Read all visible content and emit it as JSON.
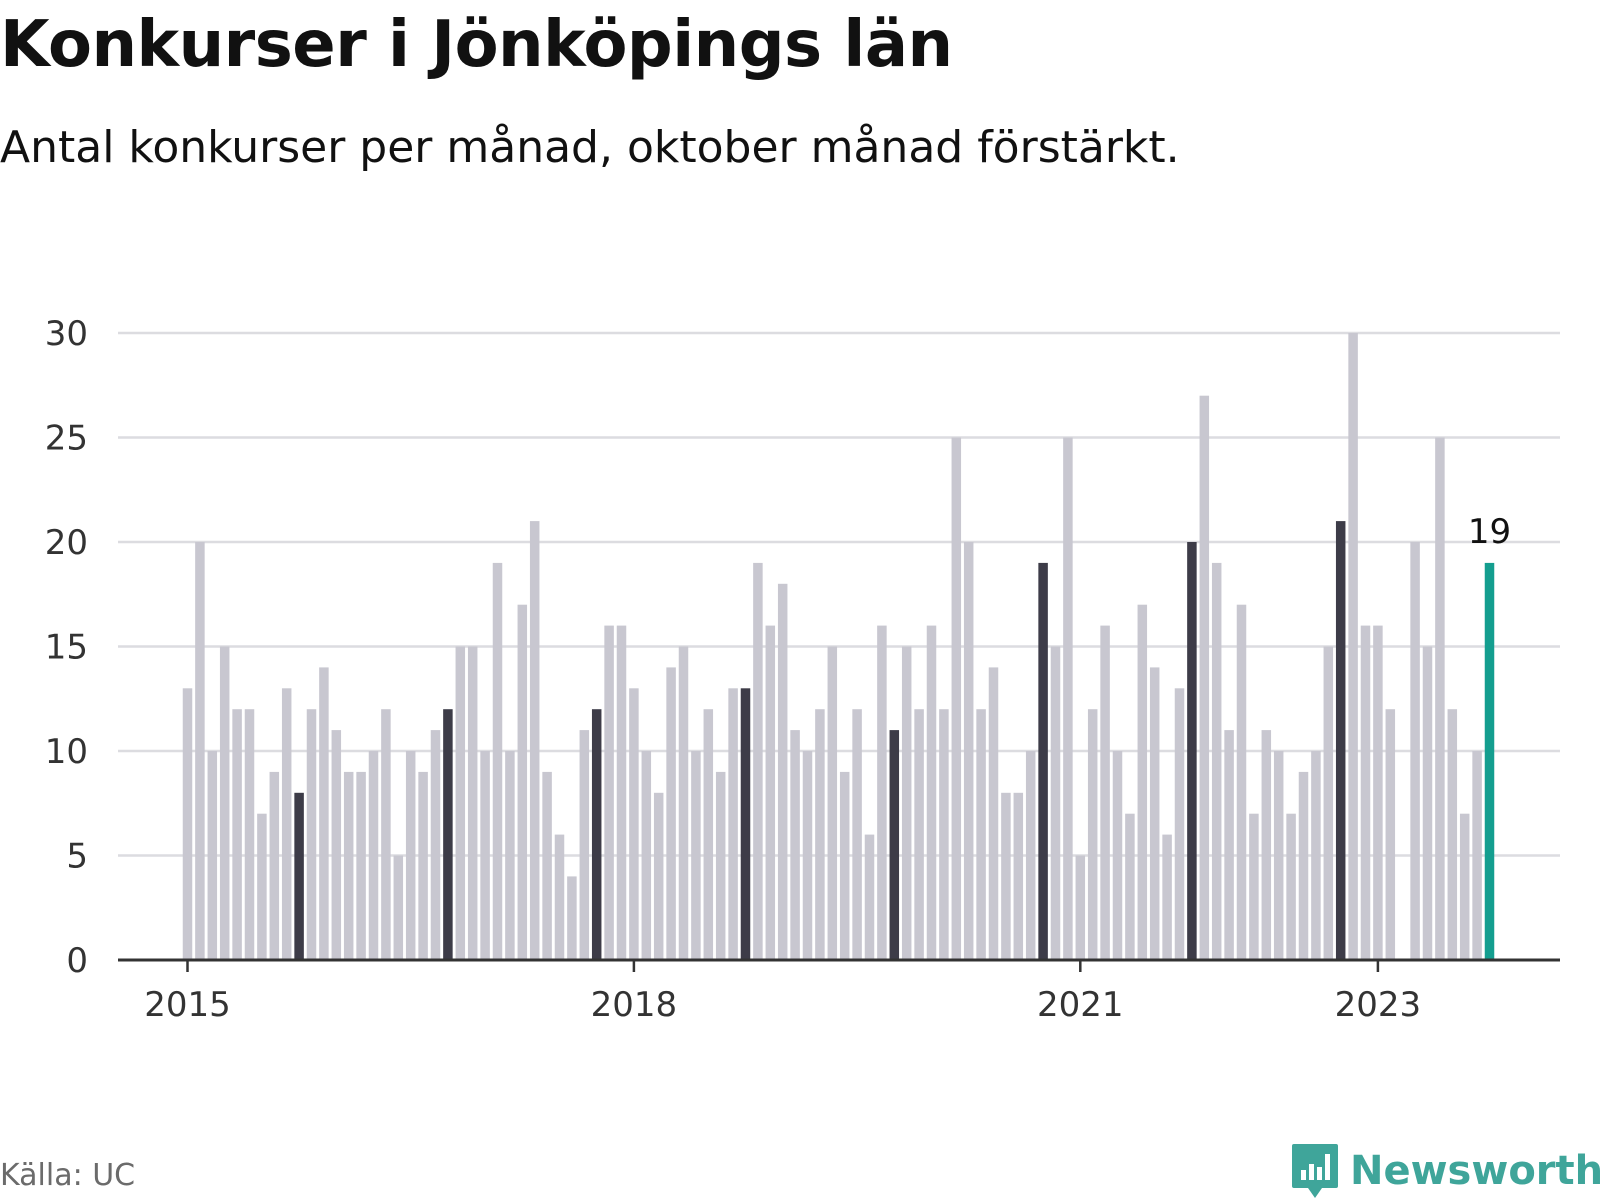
{
  "title": "Konkurser i Jönköpings län",
  "subtitle": "Antal konkurser per månad, oktober månad förstärkt.",
  "source": "Källa: UC",
  "brand": {
    "name": "Newsworthy",
    "icon": "bar-chart-speech-bubble-icon"
  },
  "colors": {
    "bar": "#c8c7d0",
    "highlight_october": "#3d3c48",
    "latest": "#149e8f",
    "grid": "#dcdce0",
    "axis": "#333333",
    "brand": "#3fa59a"
  },
  "chart_data": {
    "type": "bar",
    "ylim": [
      0,
      30
    ],
    "yticks": [
      0,
      5,
      10,
      15,
      20,
      25,
      30
    ],
    "xtick_labels": [
      {
        "label": "2015",
        "index": 0
      },
      {
        "label": "2018",
        "index": 36
      },
      {
        "label": "2021",
        "index": 72
      },
      {
        "label": "2023",
        "index": 96
      }
    ],
    "start": "2015-01",
    "highlighted_month": "oktober",
    "values": [
      13,
      20,
      10,
      15,
      12,
      12,
      7,
      9,
      13,
      8,
      12,
      14,
      11,
      9,
      9,
      10,
      12,
      5,
      10,
      9,
      11,
      12,
      15,
      15,
      10,
      19,
      10,
      17,
      21,
      9,
      6,
      4,
      11,
      12,
      16,
      16,
      13,
      10,
      8,
      14,
      15,
      10,
      12,
      9,
      13,
      13,
      19,
      16,
      18,
      11,
      10,
      12,
      15,
      9,
      12,
      6,
      16,
      11,
      15,
      12,
      16,
      12,
      25,
      20,
      12,
      14,
      8,
      8,
      10,
      19,
      15,
      25,
      5,
      12,
      16,
      10,
      7,
      17,
      14,
      6,
      13,
      20,
      27,
      19,
      11,
      17,
      7,
      11,
      10,
      7,
      9,
      10,
      15,
      21,
      30,
      16,
      16,
      12,
      0,
      20,
      15,
      25,
      12,
      7,
      10,
      19
    ],
    "latest_label": "19",
    "grid": true,
    "legend": "none"
  }
}
